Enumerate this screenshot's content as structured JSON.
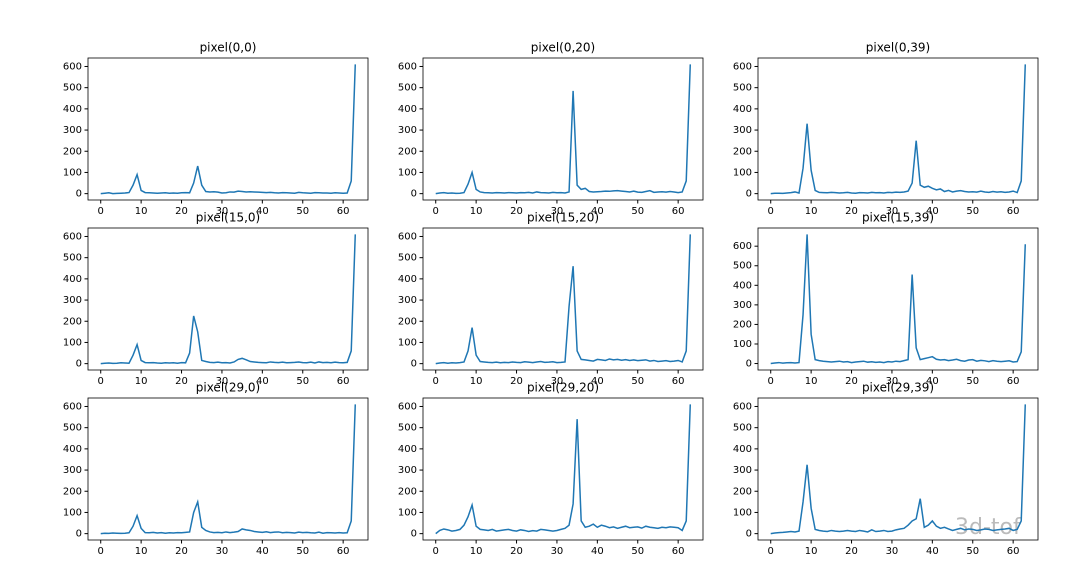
{
  "chart_data": [
    {
      "type": "line",
      "title": "pixel(0,0)",
      "color": "#1f77b4",
      "xlim": [
        -3.15,
        66.15
      ],
      "ylim": [
        -30,
        640
      ],
      "xticks": [
        0,
        10,
        20,
        30,
        40,
        50,
        60
      ],
      "yticks": [
        0,
        100,
        200,
        300,
        400,
        500,
        600
      ],
      "x": [
        0,
        1,
        2,
        3,
        4,
        5,
        6,
        7,
        8,
        9,
        10,
        11,
        12,
        13,
        14,
        15,
        16,
        17,
        18,
        19,
        20,
        21,
        22,
        23,
        24,
        25,
        26,
        27,
        28,
        29,
        30,
        31,
        32,
        33,
        34,
        35,
        36,
        37,
        38,
        39,
        40,
        41,
        42,
        43,
        44,
        45,
        46,
        47,
        48,
        49,
        50,
        51,
        52,
        53,
        54,
        55,
        56,
        57,
        58,
        59,
        60,
        61,
        62,
        63
      ],
      "values": [
        0,
        2,
        4,
        0,
        1,
        2,
        3,
        5,
        40,
        90,
        15,
        5,
        4,
        3,
        2,
        3,
        4,
        2,
        3,
        2,
        4,
        5,
        4,
        50,
        130,
        40,
        10,
        8,
        9,
        7,
        3,
        4,
        8,
        7,
        12,
        10,
        8,
        9,
        8,
        7,
        6,
        5,
        6,
        4,
        3,
        5,
        4,
        3,
        2,
        6,
        4,
        3,
        2,
        5,
        4,
        3,
        3,
        2,
        4,
        3,
        2,
        3,
        60,
        610
      ]
    },
    {
      "type": "line",
      "title": "pixel(0,20)",
      "color": "#1f77b4",
      "xlim": [
        -3.15,
        66.15
      ],
      "ylim": [
        -30,
        640
      ],
      "xticks": [
        0,
        10,
        20,
        30,
        40,
        50,
        60
      ],
      "yticks": [
        0,
        100,
        200,
        300,
        400,
        500,
        600
      ],
      "x": [
        0,
        1,
        2,
        3,
        4,
        5,
        6,
        7,
        8,
        9,
        10,
        11,
        12,
        13,
        14,
        15,
        16,
        17,
        18,
        19,
        20,
        21,
        22,
        23,
        24,
        25,
        26,
        27,
        28,
        29,
        30,
        31,
        32,
        33,
        34,
        35,
        36,
        37,
        38,
        39,
        40,
        41,
        42,
        43,
        44,
        45,
        46,
        47,
        48,
        49,
        50,
        51,
        52,
        53,
        54,
        55,
        56,
        57,
        58,
        59,
        60,
        61,
        62,
        63
      ],
      "values": [
        0,
        3,
        5,
        2,
        3,
        1,
        2,
        5,
        45,
        100,
        20,
        8,
        5,
        4,
        3,
        5,
        4,
        3,
        5,
        4,
        3,
        5,
        4,
        6,
        3,
        8,
        5,
        4,
        3,
        6,
        4,
        5,
        3,
        8,
        485,
        40,
        20,
        25,
        10,
        8,
        9,
        10,
        12,
        11,
        13,
        14,
        12,
        10,
        8,
        12,
        7,
        6,
        10,
        14,
        6,
        8,
        9,
        7,
        10,
        8,
        5,
        8,
        60,
        610
      ]
    },
    {
      "type": "line",
      "title": "pixel(0,39)",
      "color": "#1f77b4",
      "xlim": [
        -3.15,
        66.15
      ],
      "ylim": [
        -30,
        640
      ],
      "xticks": [
        0,
        10,
        20,
        30,
        40,
        50,
        60
      ],
      "yticks": [
        0,
        100,
        200,
        300,
        400,
        500,
        600
      ],
      "x": [
        0,
        1,
        2,
        3,
        4,
        5,
        6,
        7,
        8,
        9,
        10,
        11,
        12,
        13,
        14,
        15,
        16,
        17,
        18,
        19,
        20,
        21,
        22,
        23,
        24,
        25,
        26,
        27,
        28,
        29,
        30,
        31,
        32,
        33,
        34,
        35,
        36,
        37,
        38,
        39,
        40,
        41,
        42,
        43,
        44,
        45,
        46,
        47,
        48,
        49,
        50,
        51,
        52,
        53,
        54,
        55,
        56,
        57,
        58,
        59,
        60,
        61,
        62,
        63
      ],
      "values": [
        0,
        2,
        2,
        1,
        3,
        5,
        8,
        3,
        120,
        330,
        110,
        15,
        6,
        5,
        4,
        6,
        5,
        3,
        4,
        6,
        3,
        2,
        5,
        4,
        3,
        6,
        4,
        5,
        3,
        6,
        5,
        7,
        6,
        8,
        12,
        50,
        250,
        40,
        30,
        35,
        25,
        18,
        22,
        10,
        15,
        8,
        12,
        14,
        10,
        8,
        9,
        7,
        12,
        8,
        6,
        10,
        7,
        9,
        6,
        8,
        12,
        5,
        60,
        610
      ]
    },
    {
      "type": "line",
      "title": "pixel(15,0)",
      "color": "#1f77b4",
      "xlim": [
        -3.15,
        66.15
      ],
      "ylim": [
        -30,
        640
      ],
      "xticks": [
        0,
        10,
        20,
        30,
        40,
        50,
        60
      ],
      "yticks": [
        0,
        100,
        200,
        300,
        400,
        500,
        600
      ],
      "x": [
        0,
        1,
        2,
        3,
        4,
        5,
        6,
        7,
        8,
        9,
        10,
        11,
        12,
        13,
        14,
        15,
        16,
        17,
        18,
        19,
        20,
        21,
        22,
        23,
        24,
        25,
        26,
        27,
        28,
        29,
        30,
        31,
        32,
        33,
        34,
        35,
        36,
        37,
        38,
        39,
        40,
        41,
        42,
        43,
        44,
        45,
        46,
        47,
        48,
        49,
        50,
        51,
        52,
        53,
        54,
        55,
        56,
        57,
        58,
        59,
        60,
        61,
        62,
        63
      ],
      "values": [
        0,
        2,
        3,
        1,
        2,
        4,
        3,
        2,
        40,
        90,
        15,
        5,
        4,
        5,
        3,
        2,
        4,
        3,
        4,
        2,
        5,
        4,
        50,
        225,
        150,
        15,
        10,
        6,
        5,
        7,
        4,
        5,
        3,
        8,
        20,
        25,
        18,
        10,
        8,
        6,
        5,
        4,
        8,
        6,
        5,
        7,
        4,
        5,
        6,
        8,
        5,
        4,
        7,
        3,
        8,
        5,
        6,
        4,
        7,
        5,
        4,
        6,
        60,
        610
      ]
    },
    {
      "type": "line",
      "title": "pixel(15,20)",
      "color": "#1f77b4",
      "xlim": [
        -3.15,
        66.15
      ],
      "ylim": [
        -30,
        640
      ],
      "xticks": [
        0,
        10,
        20,
        30,
        40,
        50,
        60
      ],
      "yticks": [
        0,
        100,
        200,
        300,
        400,
        500,
        600
      ],
      "x": [
        0,
        1,
        2,
        3,
        4,
        5,
        6,
        7,
        8,
        9,
        10,
        11,
        12,
        13,
        14,
        15,
        16,
        17,
        18,
        19,
        20,
        21,
        22,
        23,
        24,
        25,
        26,
        27,
        28,
        29,
        30,
        31,
        32,
        33,
        34,
        35,
        36,
        37,
        38,
        39,
        40,
        41,
        42,
        43,
        44,
        45,
        46,
        47,
        48,
        49,
        50,
        51,
        52,
        53,
        54,
        55,
        56,
        57,
        58,
        59,
        60,
        61,
        62,
        63
      ],
      "values": [
        0,
        3,
        5,
        2,
        4,
        3,
        5,
        8,
        60,
        170,
        40,
        10,
        8,
        6,
        5,
        7,
        4,
        6,
        5,
        8,
        6,
        5,
        9,
        7,
        5,
        8,
        10,
        6,
        7,
        9,
        5,
        6,
        8,
        270,
        460,
        60,
        20,
        18,
        15,
        12,
        20,
        18,
        15,
        22,
        18,
        20,
        16,
        19,
        15,
        18,
        14,
        16,
        18,
        12,
        15,
        10,
        12,
        14,
        10,
        12,
        15,
        8,
        60,
        610
      ]
    },
    {
      "type": "line",
      "title": "pixel(15,39)",
      "color": "#1f77b4",
      "xlim": [
        -3.15,
        66.15
      ],
      "ylim": [
        -33,
        693
      ],
      "xticks": [
        0,
        10,
        20,
        30,
        40,
        50,
        60
      ],
      "yticks": [
        0,
        100,
        200,
        300,
        400,
        500,
        600
      ],
      "x": [
        0,
        1,
        2,
        3,
        4,
        5,
        6,
        7,
        8,
        9,
        10,
        11,
        12,
        13,
        14,
        15,
        16,
        17,
        18,
        19,
        20,
        21,
        22,
        23,
        24,
        25,
        26,
        27,
        28,
        29,
        30,
        31,
        32,
        33,
        34,
        35,
        36,
        37,
        38,
        39,
        40,
        41,
        42,
        43,
        44,
        45,
        46,
        47,
        48,
        49,
        50,
        51,
        52,
        53,
        54,
        55,
        56,
        57,
        58,
        59,
        60,
        61,
        62,
        63
      ],
      "values": [
        0,
        3,
        5,
        2,
        4,
        5,
        3,
        5,
        250,
        660,
        150,
        20,
        15,
        12,
        10,
        8,
        10,
        12,
        8,
        10,
        5,
        8,
        10,
        12,
        7,
        9,
        6,
        8,
        5,
        10,
        8,
        12,
        10,
        15,
        20,
        455,
        80,
        20,
        25,
        30,
        35,
        22,
        18,
        20,
        15,
        18,
        22,
        15,
        12,
        18,
        20,
        12,
        16,
        14,
        10,
        15,
        12,
        10,
        12,
        14,
        8,
        10,
        60,
        610
      ]
    },
    {
      "type": "line",
      "title": "pixel(29,0)",
      "color": "#1f77b4",
      "xlim": [
        -3.15,
        66.15
      ],
      "ylim": [
        -30,
        640
      ],
      "xticks": [
        0,
        10,
        20,
        30,
        40,
        50,
        60
      ],
      "yticks": [
        0,
        100,
        200,
        300,
        400,
        500,
        600
      ],
      "x": [
        0,
        1,
        2,
        3,
        4,
        5,
        6,
        7,
        8,
        9,
        10,
        11,
        12,
        13,
        14,
        15,
        16,
        17,
        18,
        19,
        20,
        21,
        22,
        23,
        24,
        25,
        26,
        27,
        28,
        29,
        30,
        31,
        32,
        33,
        34,
        35,
        36,
        37,
        38,
        39,
        40,
        41,
        42,
        43,
        44,
        45,
        46,
        47,
        48,
        49,
        50,
        51,
        52,
        53,
        54,
        55,
        56,
        57,
        58,
        59,
        60,
        61,
        62,
        63
      ],
      "values": [
        0,
        2,
        1,
        3,
        2,
        1,
        2,
        4,
        35,
        85,
        25,
        5,
        4,
        6,
        3,
        5,
        2,
        4,
        3,
        5,
        4,
        6,
        8,
        100,
        150,
        30,
        15,
        8,
        5,
        6,
        4,
        8,
        5,
        7,
        10,
        22,
        18,
        15,
        10,
        8,
        6,
        9,
        5,
        7,
        8,
        4,
        6,
        5,
        3,
        7,
        5,
        6,
        4,
        3,
        7,
        2,
        5,
        4,
        3,
        5,
        3,
        4,
        60,
        610
      ]
    },
    {
      "type": "line",
      "title": "pixel(29,20)",
      "color": "#1f77b4",
      "xlim": [
        -3.15,
        66.15
      ],
      "ylim": [
        -30,
        640
      ],
      "xticks": [
        0,
        10,
        20,
        30,
        40,
        50,
        60
      ],
      "yticks": [
        0,
        100,
        200,
        300,
        400,
        500,
        600
      ],
      "x": [
        0,
        1,
        2,
        3,
        4,
        5,
        6,
        7,
        8,
        9,
        10,
        11,
        12,
        13,
        14,
        15,
        16,
        17,
        18,
        19,
        20,
        21,
        22,
        23,
        24,
        25,
        26,
        27,
        28,
        29,
        30,
        31,
        32,
        33,
        34,
        35,
        36,
        37,
        38,
        39,
        40,
        41,
        42,
        43,
        44,
        45,
        46,
        47,
        48,
        49,
        50,
        51,
        52,
        53,
        54,
        55,
        56,
        57,
        58,
        59,
        60,
        61,
        62,
        63
      ],
      "values": [
        0,
        15,
        22,
        18,
        12,
        15,
        20,
        40,
        80,
        135,
        35,
        20,
        18,
        15,
        20,
        12,
        15,
        18,
        20,
        15,
        12,
        18,
        15,
        10,
        14,
        12,
        20,
        18,
        15,
        12,
        15,
        20,
        25,
        40,
        140,
        540,
        60,
        30,
        35,
        45,
        30,
        40,
        35,
        28,
        32,
        25,
        30,
        35,
        28,
        30,
        32,
        26,
        35,
        30,
        28,
        25,
        30,
        28,
        32,
        30,
        28,
        15,
        60,
        610
      ]
    },
    {
      "type": "line",
      "title": "pixel(29,39)",
      "color": "#1f77b4",
      "xlim": [
        -3.15,
        66.15
      ],
      "ylim": [
        -30,
        640
      ],
      "xticks": [
        0,
        10,
        20,
        30,
        40,
        50,
        60
      ],
      "yticks": [
        0,
        100,
        200,
        300,
        400,
        500,
        600
      ],
      "x": [
        0,
        1,
        2,
        3,
        4,
        5,
        6,
        7,
        8,
        9,
        10,
        11,
        12,
        13,
        14,
        15,
        16,
        17,
        18,
        19,
        20,
        21,
        22,
        23,
        24,
        25,
        26,
        27,
        28,
        29,
        30,
        31,
        32,
        33,
        34,
        35,
        36,
        37,
        38,
        39,
        40,
        41,
        42,
        43,
        44,
        45,
        46,
        47,
        48,
        49,
        50,
        51,
        52,
        53,
        54,
        55,
        56,
        57,
        58,
        59,
        60,
        61,
        62,
        63
      ],
      "values": [
        0,
        3,
        5,
        6,
        8,
        10,
        8,
        12,
        150,
        325,
        120,
        20,
        15,
        12,
        10,
        15,
        12,
        10,
        12,
        15,
        12,
        10,
        15,
        12,
        8,
        18,
        10,
        12,
        15,
        10,
        12,
        18,
        22,
        25,
        40,
        60,
        70,
        165,
        30,
        40,
        60,
        35,
        25,
        30,
        22,
        15,
        20,
        25,
        18,
        22,
        20,
        15,
        18,
        22,
        20,
        15,
        18,
        20,
        22,
        25,
        15,
        20,
        60,
        610
      ]
    }
  ],
  "watermark": "3d-tof"
}
